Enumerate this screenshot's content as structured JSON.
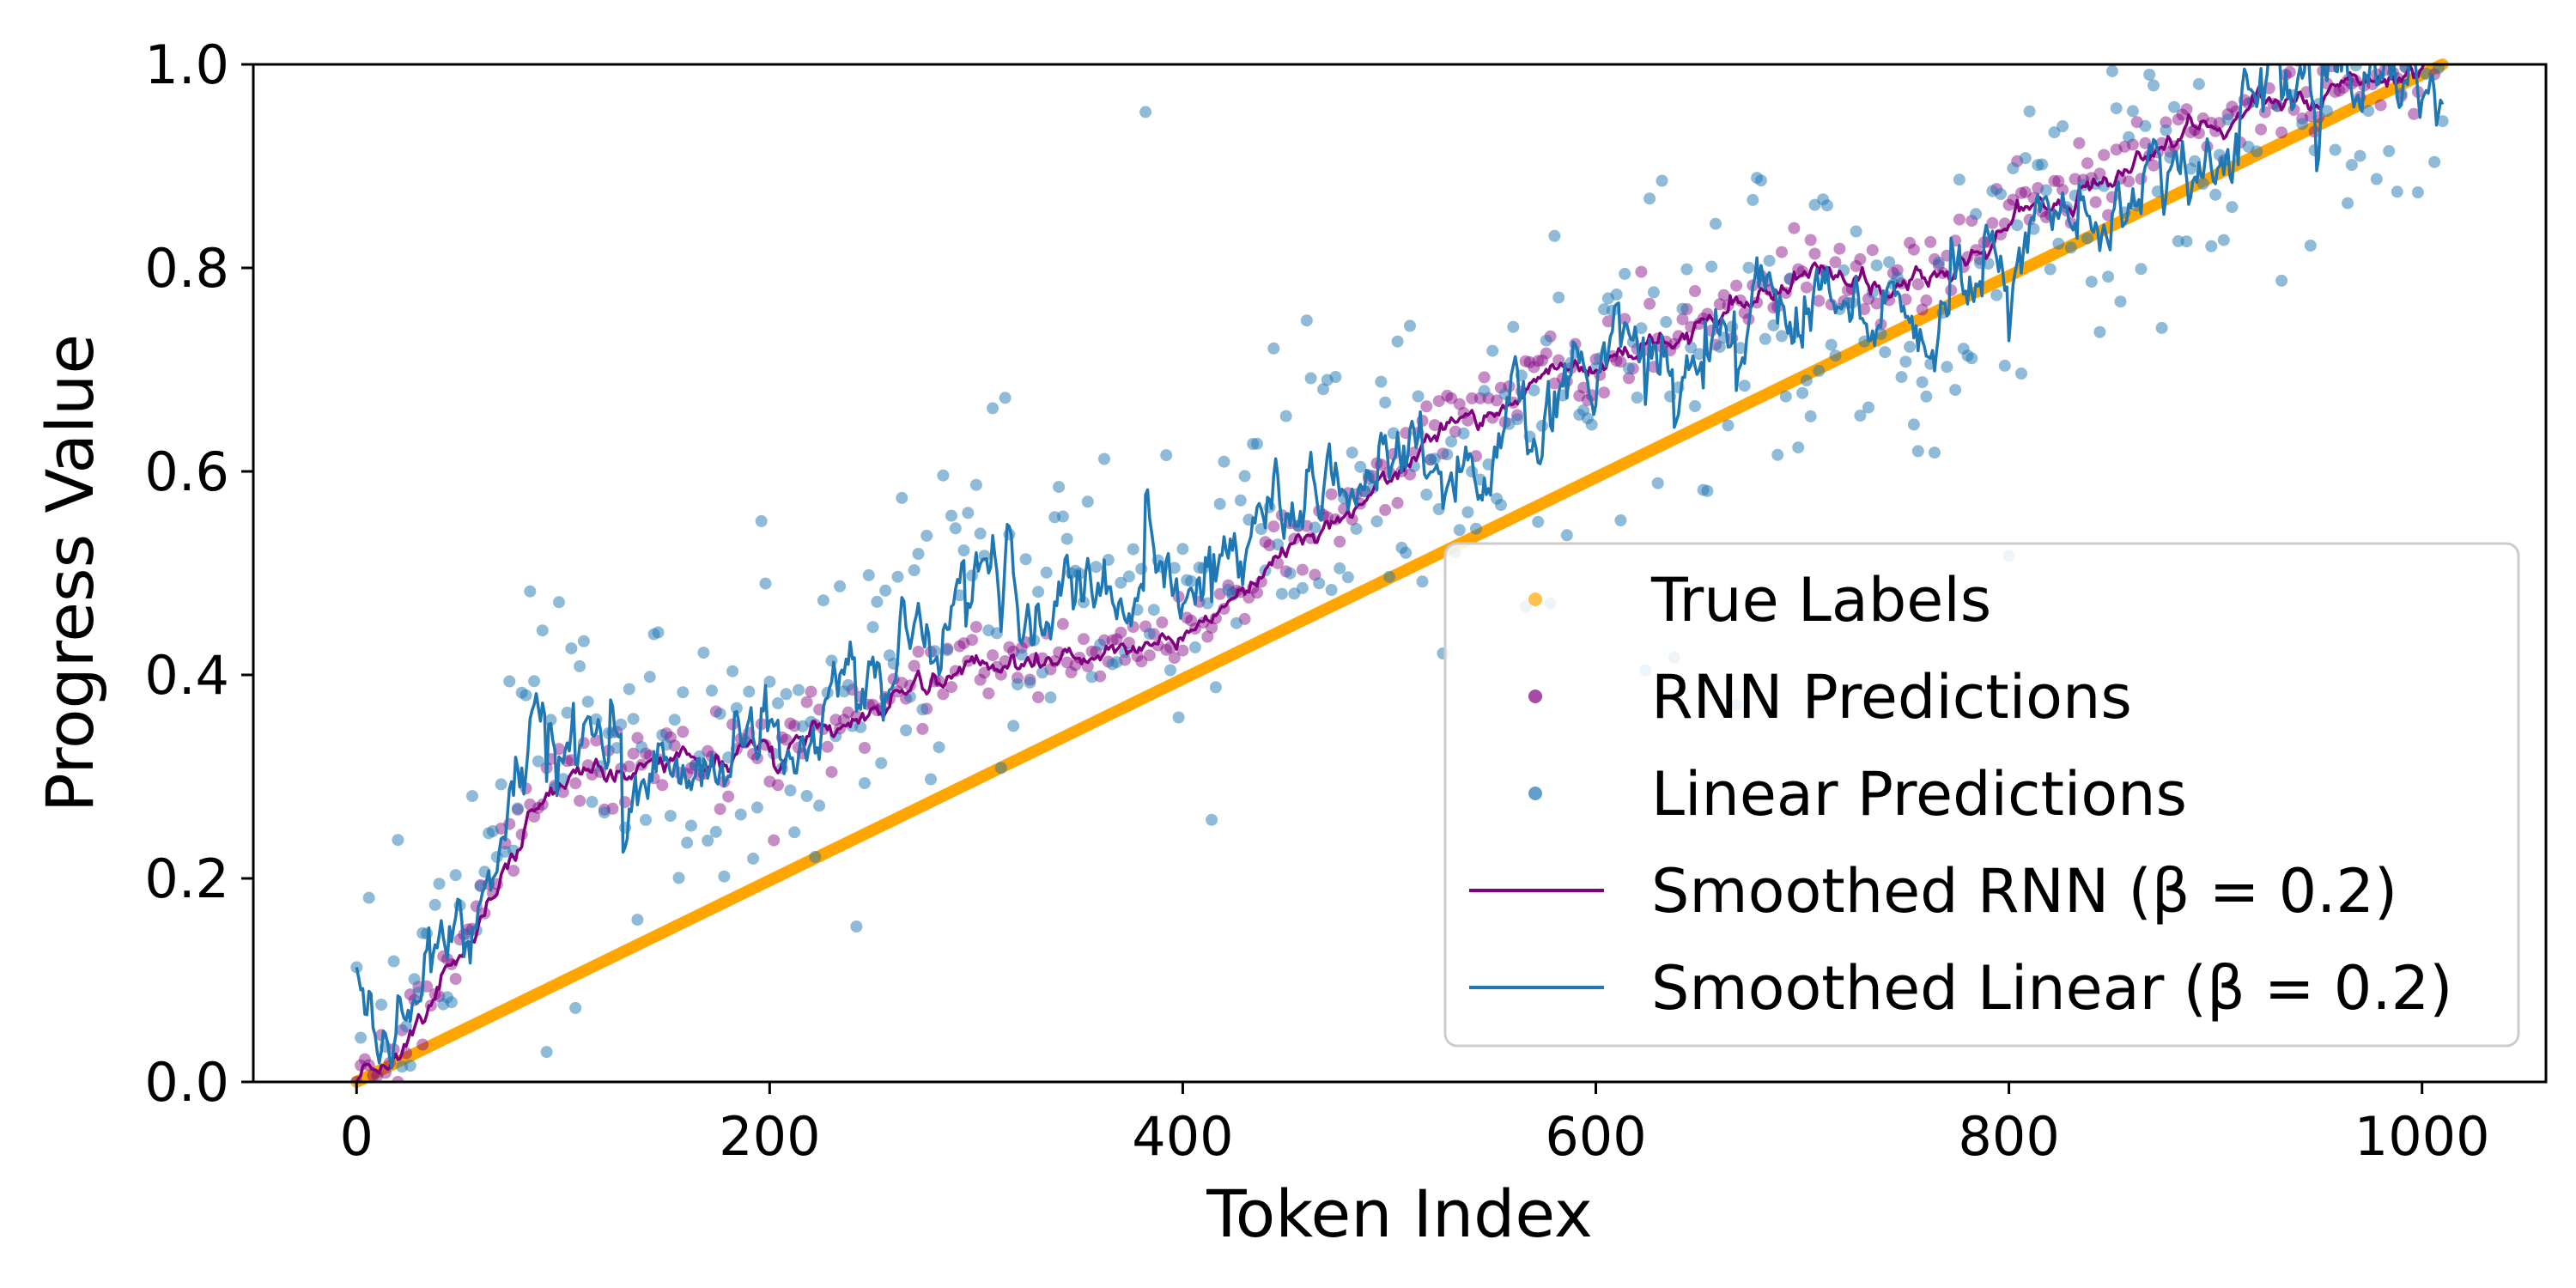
{
  "chart_data": {
    "type": "scatter",
    "title": "",
    "xlabel": "Token Index",
    "ylabel": "Progress Value",
    "xlim": [
      -50,
      1060
    ],
    "ylim": [
      0.0,
      1.0
    ],
    "xticks": [
      "0",
      "200",
      "400",
      "600",
      "800",
      "1000"
    ],
    "yticks": [
      "0.0",
      "0.2",
      "0.4",
      "0.6",
      "0.8",
      "1.0"
    ],
    "x_range": [
      0,
      1010
    ],
    "legend_position": "lower-right",
    "series": [
      {
        "name": "True Labels",
        "kind": "scatter",
        "color": "#FFA500",
        "description": "y = x / 1010 for every token index"
      },
      {
        "name": "RNN Predictions",
        "kind": "scatter",
        "color": "#800080",
        "trend_x": [
          0,
          20,
          50,
          80,
          100,
          120,
          150,
          200,
          250,
          300,
          310,
          350,
          400,
          450,
          500,
          530,
          560,
          600,
          650,
          700,
          750,
          800,
          850,
          900,
          950,
          1000,
          1010
        ],
        "trend_y": [
          0.0,
          0.04,
          0.13,
          0.26,
          0.3,
          0.31,
          0.31,
          0.33,
          0.37,
          0.42,
          0.4,
          0.42,
          0.44,
          0.53,
          0.6,
          0.65,
          0.68,
          0.71,
          0.74,
          0.8,
          0.78,
          0.85,
          0.89,
          0.95,
          0.97,
          1.0,
          1.0
        ]
      },
      {
        "name": "Linear Predictions",
        "kind": "scatter",
        "color": "#1f77b4",
        "trend_x": [
          0,
          20,
          40,
          60,
          80,
          100,
          120,
          150,
          200,
          250,
          300,
          350,
          400,
          450,
          500,
          530,
          560,
          600,
          650,
          700,
          750,
          800,
          850,
          900,
          950,
          1000,
          1010
        ],
        "trend_y": [
          0.03,
          0.08,
          0.13,
          0.18,
          0.36,
          0.37,
          0.33,
          0.3,
          0.34,
          0.42,
          0.48,
          0.47,
          0.5,
          0.57,
          0.59,
          0.63,
          0.66,
          0.7,
          0.73,
          0.76,
          0.74,
          0.84,
          0.87,
          0.93,
          0.97,
          0.98,
          0.95
        ]
      },
      {
        "name": "Smoothed RNN (β = 0.2)",
        "kind": "line",
        "color": "#800080"
      },
      {
        "name": "Smoothed Linear (β = 0.2)",
        "kind": "line",
        "color": "#1f77b4"
      }
    ]
  }
}
